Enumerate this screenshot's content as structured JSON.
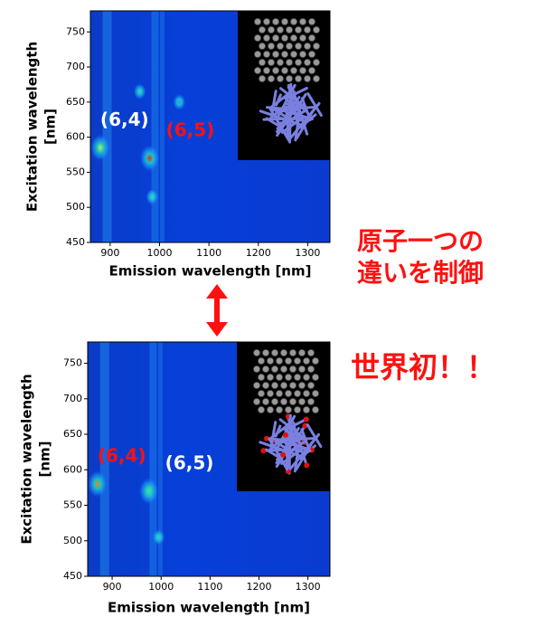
{
  "chart_data": [
    {
      "type": "heatmap",
      "xlabel": "Emission wavelength [nm]",
      "ylabel": "Excitation wavelength",
      "yunit": "[nm]",
      "xlim": [
        860,
        1345
      ],
      "xticks": [
        900,
        1000,
        1100,
        1200,
        1300
      ],
      "ylim": [
        450,
        780
      ],
      "yticks": [
        450,
        500,
        550,
        600,
        650,
        700,
        750
      ],
      "x": [
        880,
        980,
        960,
        985,
        1040
      ],
      "y": [
        585,
        570,
        665,
        515,
        650
      ],
      "colors": [
        "#c8f040",
        "#ff2000",
        "#40c0ff",
        "#40c0ff",
        "#3090ff"
      ],
      "labels": [
        "(6,4)",
        "(6,5)",
        null,
        null,
        null
      ],
      "label_colors": [
        "#ffffff",
        "#ff1010",
        null,
        null,
        null
      ]
    },
    {
      "type": "heatmap",
      "xlabel": "Emission wavelength [nm]",
      "ylabel": "Excitation wavelength",
      "yunit": "[nm]",
      "xlim": [
        850,
        1345
      ],
      "xticks": [
        900,
        1000,
        1100,
        1200,
        1300
      ],
      "ylim": [
        450,
        780
      ],
      "yticks": [
        450,
        500,
        550,
        600,
        650,
        700,
        750
      ],
      "x": [
        870,
        975,
        995
      ],
      "y": [
        580,
        570,
        505
      ],
      "colors": [
        "#ff8000",
        "#50e0a0",
        "#40c0ff"
      ],
      "labels": [
        "(6,4)",
        "(6,5)",
        null
      ],
      "label_colors": [
        "#ff1010",
        "#ffffff",
        null
      ]
    }
  ],
  "side_text": [
    "原子一つの",
    "違いを制御"
  ],
  "headline": "世界初！！"
}
